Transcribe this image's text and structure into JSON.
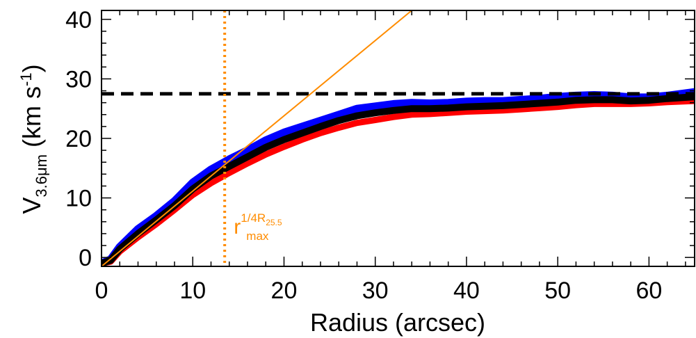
{
  "chart_data": {
    "type": "line",
    "xlabel": "Radius (arcsec)",
    "ylabel": {
      "main": "V",
      "sub": "3.6μm",
      "units_prefix": " (km s",
      "units_sup": "-1",
      "units_suffix": ")"
    },
    "xlim": [
      0,
      65
    ],
    "ylim": [
      -1.5,
      41.5
    ],
    "x_ticks": [
      0,
      10,
      20,
      30,
      40,
      50,
      60
    ],
    "x_tick_labels": [
      "0",
      "10",
      "20",
      "30",
      "40",
      "50",
      "60"
    ],
    "y_ticks": [
      0,
      10,
      20,
      30,
      40
    ],
    "y_tick_labels": [
      "0",
      "10",
      "20",
      "30",
      "40"
    ],
    "grid": false,
    "series": [
      {
        "role": "upper",
        "color": "#0000ff",
        "x": [
          0,
          1,
          2,
          4,
          6,
          8,
          10,
          12,
          14,
          16,
          18,
          20,
          22,
          24,
          26,
          28,
          30,
          32,
          34,
          36,
          38,
          40,
          42,
          44,
          46,
          48,
          50,
          52,
          54,
          56,
          58,
          60,
          62,
          65
        ],
        "y": [
          -1.0,
          -0.3,
          1.8,
          4.8,
          7.0,
          9.5,
          12.6,
          14.8,
          16.5,
          18.0,
          19.7,
          21.0,
          22.0,
          23.0,
          24.0,
          25.0,
          25.4,
          25.8,
          26.0,
          25.9,
          26.0,
          26.2,
          26.3,
          26.3,
          26.5,
          26.7,
          27.0,
          27.2,
          27.3,
          27.2,
          26.9,
          26.9,
          27.2,
          27.8
        ]
      },
      {
        "role": "lower",
        "color": "#ff0000",
        "x": [
          0,
          1,
          2,
          4,
          6,
          8,
          10,
          12,
          14,
          16,
          18,
          20,
          22,
          24,
          26,
          28,
          30,
          32,
          34,
          36,
          38,
          40,
          42,
          44,
          46,
          48,
          50,
          52,
          54,
          56,
          58,
          60,
          62,
          65
        ],
        "y": [
          -1.0,
          -0.7,
          1.0,
          3.4,
          5.6,
          8.0,
          10.5,
          12.5,
          14.2,
          15.8,
          17.3,
          18.6,
          19.8,
          20.9,
          21.8,
          22.6,
          23.1,
          23.6,
          24.0,
          24.1,
          24.3,
          24.5,
          24.6,
          24.7,
          24.9,
          25.1,
          25.3,
          25.6,
          25.8,
          25.8,
          25.8,
          25.9,
          26.1,
          26.3
        ]
      },
      {
        "role": "best-fit",
        "color": "#000000",
        "x": [
          0,
          1,
          2,
          4,
          6,
          8,
          10,
          12,
          14,
          16,
          18,
          20,
          22,
          24,
          26,
          28,
          30,
          32,
          34,
          36,
          38,
          40,
          42,
          44,
          46,
          48,
          50,
          52,
          54,
          56,
          58,
          60,
          62,
          65
        ],
        "y": [
          -1.0,
          -0.5,
          1.4,
          4.0,
          6.3,
          8.7,
          11.5,
          13.7,
          15.3,
          16.9,
          18.5,
          19.8,
          20.9,
          22.0,
          23.0,
          23.8,
          24.3,
          24.7,
          25.0,
          25.0,
          25.1,
          25.3,
          25.4,
          25.5,
          25.7,
          25.9,
          26.1,
          26.4,
          26.5,
          26.5,
          26.3,
          26.4,
          26.7,
          27.0
        ]
      }
    ],
    "reference_lines": {
      "vmax_level": {
        "y": 27.5,
        "color": "#000000",
        "style": "dashed"
      },
      "inner_slope": {
        "x": [
          0,
          34
        ],
        "y": [
          -1.5,
          41.5
        ],
        "color": "#ff8c00"
      },
      "rmax_marker": {
        "x": 13.5,
        "color": "#ff8c00",
        "style": "dotted"
      }
    },
    "annotation": {
      "text": "r",
      "sup": "1/4R",
      "sup_sub": "25.5",
      "sub": "max",
      "color": "#ff8c00",
      "x": 14.5,
      "y": 4.0
    }
  }
}
